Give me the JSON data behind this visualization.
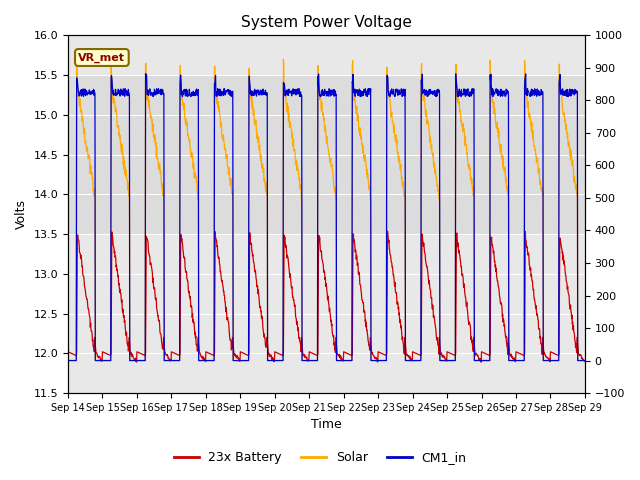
{
  "title": "System Power Voltage",
  "xlabel": "Time",
  "ylabel": "Volts",
  "ylim_left": [
    11.5,
    16.0
  ],
  "ylim_right": [
    -100,
    1000
  ],
  "yticks_left": [
    11.5,
    12.0,
    12.5,
    13.0,
    13.5,
    14.0,
    14.5,
    15.0,
    15.5,
    16.0
  ],
  "yticks_right": [
    -100,
    0,
    100,
    200,
    300,
    400,
    500,
    600,
    700,
    800,
    900,
    1000
  ],
  "xtick_labels": [
    "Sep 14",
    "Sep 15",
    "Sep 16",
    "Sep 17",
    "Sep 18",
    "Sep 19",
    "Sep 20",
    "Sep 21",
    "Sep 22",
    "Sep 23",
    "Sep 24",
    "Sep 25",
    "Sep 26",
    "Sep 27",
    "Sep 28",
    "Sep 29"
  ],
  "battery_color": "#cc0000",
  "solar_color": "#ffaa00",
  "cm1_color": "#0000cc",
  "facecolor": "#e8e8e8",
  "shadecolor": "#d4d4d4",
  "legend_labels": [
    "23x Battery",
    "Solar",
    "CM1_in"
  ],
  "annotation_text": "VR_met",
  "figsize": [
    6.4,
    4.8
  ],
  "dpi": 100
}
